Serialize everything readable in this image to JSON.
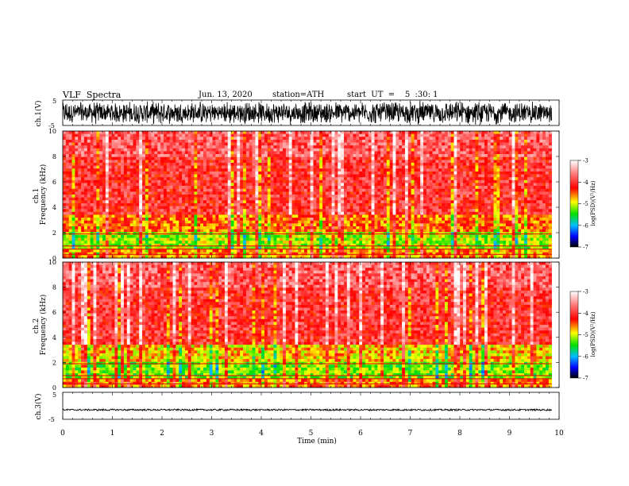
{
  "header": {
    "title": "VLF  Spectra",
    "date": "Jun. 13, 2020",
    "station": "station=ATH",
    "start": "start  UT  =    5  :30: 1"
  },
  "chart_data": [
    {
      "type": "line",
      "name": "ch1-waveform",
      "ylabel": "ch.1(V)",
      "ylim": [
        -5,
        5
      ],
      "y_ticks": [
        "5",
        "-5"
      ],
      "xlim": [
        0,
        10
      ],
      "data_extent_min": 9.85,
      "amplitude_range_V": [
        -4.8,
        4.8
      ]
    },
    {
      "type": "heatmap",
      "name": "ch1-spectrogram",
      "ylabel": "ch.1\nFrequency  (kHz)",
      "ylim": [
        0,
        10
      ],
      "y_ticks": [
        "0",
        "2",
        "4",
        "6",
        "8",
        "10"
      ],
      "xlim": [
        0,
        10
      ],
      "data_extent_min": 9.85,
      "colorbar": {
        "label": "log(PSD)(V²/Hz)",
        "range": [
          -7,
          -3
        ],
        "ticks": [
          "-3",
          "-4",
          "-5",
          "-6",
          "-7"
        ]
      }
    },
    {
      "type": "heatmap",
      "name": "ch2-spectrogram",
      "ylabel": "ch.2\nFrequency  (kHz)",
      "ylim": [
        0,
        10
      ],
      "y_ticks": [
        "0",
        "2",
        "4",
        "6",
        "8",
        "10"
      ],
      "xlim": [
        0,
        10
      ],
      "data_extent_min": 9.85,
      "colorbar": {
        "label": "log(PSD)(V²/Hz)",
        "range": [
          -7,
          -3
        ],
        "ticks": [
          "-3",
          "-4",
          "-5",
          "-6",
          "-7"
        ]
      }
    },
    {
      "type": "line",
      "name": "ch3-waveform",
      "ylabel": "ch.3(V)",
      "ylim": [
        -5,
        5
      ],
      "y_ticks": [
        "5",
        "-5"
      ],
      "xlim": [
        0,
        10
      ],
      "data_extent_min": 9.85,
      "baseline_V": -1.5,
      "amplitude_range_V": [
        -1.8,
        -1.2
      ]
    }
  ],
  "x_axis": {
    "label": "Time  (min)",
    "ticks": [
      "0",
      "1",
      "2",
      "3",
      "4",
      "5",
      "6",
      "7",
      "8",
      "9",
      "10"
    ]
  }
}
